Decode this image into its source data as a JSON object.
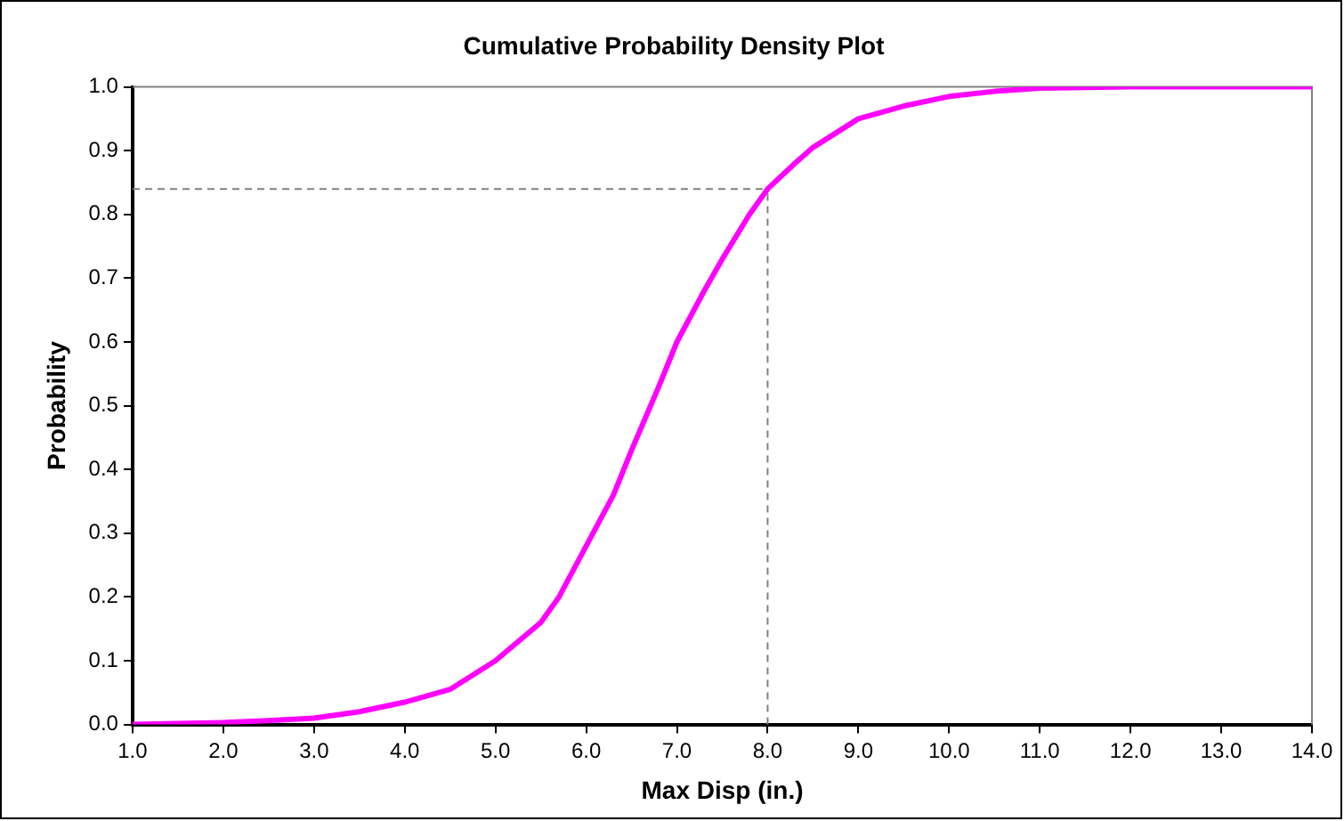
{
  "chart_data": {
    "type": "line",
    "title": "Cumulative Probability Density Plot",
    "xlabel": "Max Disp (in.)",
    "ylabel": "Probability",
    "series": [
      {
        "color": "#ff00ff",
        "x": [
          1.0,
          2.0,
          2.5,
          3.0,
          3.5,
          4.0,
          4.5,
          5.0,
          5.5,
          5.7,
          6.0,
          6.3,
          6.5,
          6.8,
          7.0,
          7.3,
          7.5,
          7.8,
          8.0,
          8.3,
          8.5,
          9.0,
          9.5,
          10.0,
          10.5,
          11.0,
          12.0,
          14.0
        ],
        "values": [
          0.0,
          0.003,
          0.006,
          0.01,
          0.02,
          0.035,
          0.055,
          0.1,
          0.16,
          0.2,
          0.28,
          0.36,
          0.43,
          0.53,
          0.6,
          0.68,
          0.73,
          0.8,
          0.84,
          0.88,
          0.905,
          0.95,
          0.97,
          0.985,
          0.993,
          0.998,
          1.0,
          1.0
        ]
      }
    ],
    "xlim": [
      1.0,
      14.0
    ],
    "xticks": [
      {
        "value": 1,
        "label": "1.0"
      },
      {
        "value": 2,
        "label": "2.0"
      },
      {
        "value": 3,
        "label": "3.0"
      },
      {
        "value": 4,
        "label": "4.0"
      },
      {
        "value": 5,
        "label": "5.0"
      },
      {
        "value": 6,
        "label": "6.0"
      },
      {
        "value": 7,
        "label": "7.0"
      },
      {
        "value": 8,
        "label": "8.0"
      },
      {
        "value": 9,
        "label": "9.0"
      },
      {
        "value": 10,
        "label": "10.0"
      },
      {
        "value": 11,
        "label": "11.0"
      },
      {
        "value": 12,
        "label": "12.0"
      },
      {
        "value": 13,
        "label": "13.0"
      },
      {
        "value": 14,
        "label": "14.0"
      }
    ],
    "ylim": [
      0.0,
      1.0
    ],
    "yticks": [
      {
        "value": 0,
        "label": "0.0"
      },
      {
        "value": 0.1,
        "label": "0.1"
      },
      {
        "value": 0.2,
        "label": "0.2"
      },
      {
        "value": 0.3,
        "label": "0.3"
      },
      {
        "value": 0.4,
        "label": "0.4"
      },
      {
        "value": 0.5,
        "label": "0.5"
      },
      {
        "value": 0.6,
        "label": "0.6"
      },
      {
        "value": 0.7,
        "label": "0.7"
      },
      {
        "value": 0.8,
        "label": "0.8"
      },
      {
        "value": 0.9,
        "label": "0.9"
      },
      {
        "value": 1,
        "label": "1.0"
      }
    ],
    "ref_lines": [
      {
        "axis": "y",
        "value": 0.84,
        "color": "#808080",
        "line_style": "dashed"
      },
      {
        "axis": "x",
        "value": 8.0,
        "color": "#808080",
        "line_style": "dashed"
      }
    ],
    "grid": false,
    "legend": false,
    "marker": "none",
    "line_style": "solid"
  }
}
